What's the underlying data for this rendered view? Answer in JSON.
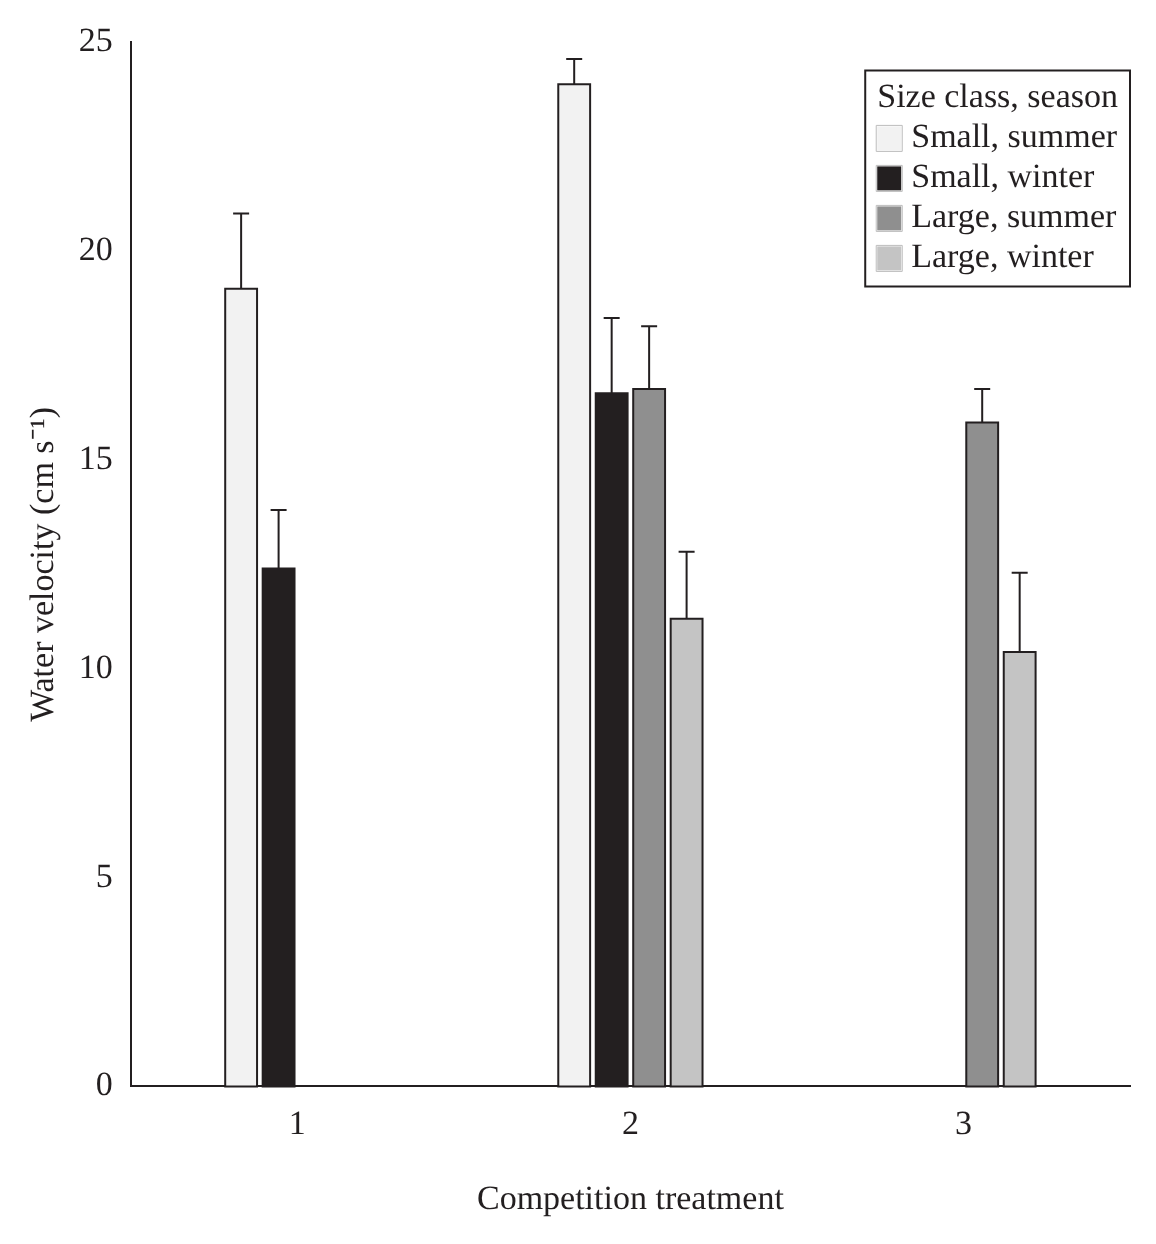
{
  "chart_data": {
    "type": "bar",
    "xlabel": "Competition treatment",
    "ylabel": "Water velocity (cm s⁻¹)",
    "legend_title": "Size class, season",
    "legend": "top right",
    "grid": false,
    "categories": [
      "1",
      "2",
      "3"
    ],
    "ylim": [
      0,
      25
    ],
    "yticks": [
      0,
      5,
      10,
      15,
      20,
      25
    ],
    "series": [
      {
        "name": "Small, summer",
        "color": "#f2f2f2",
        "values": [
          19.1,
          24.0,
          null
        ],
        "errors": [
          [
            19.1,
            20.9
          ],
          [
            24.0,
            24.6
          ],
          null
        ]
      },
      {
        "name": "Small, winter",
        "color": "#231f20",
        "values": [
          12.4,
          16.6,
          null
        ],
        "errors": [
          [
            12.4,
            13.8
          ],
          [
            16.6,
            18.4
          ],
          null
        ]
      },
      {
        "name": "Large, summer",
        "color": "#8f8f8f",
        "values": [
          null,
          16.7,
          15.9
        ],
        "errors": [
          null,
          [
            16.7,
            18.2
          ],
          [
            15.9,
            16.7
          ]
        ]
      },
      {
        "name": "Large, winter",
        "color": "#c4c4c4",
        "values": [
          null,
          11.2,
          10.4
        ],
        "errors": [
          null,
          [
            11.2,
            12.8
          ],
          [
            10.4,
            12.3
          ]
        ]
      }
    ]
  }
}
